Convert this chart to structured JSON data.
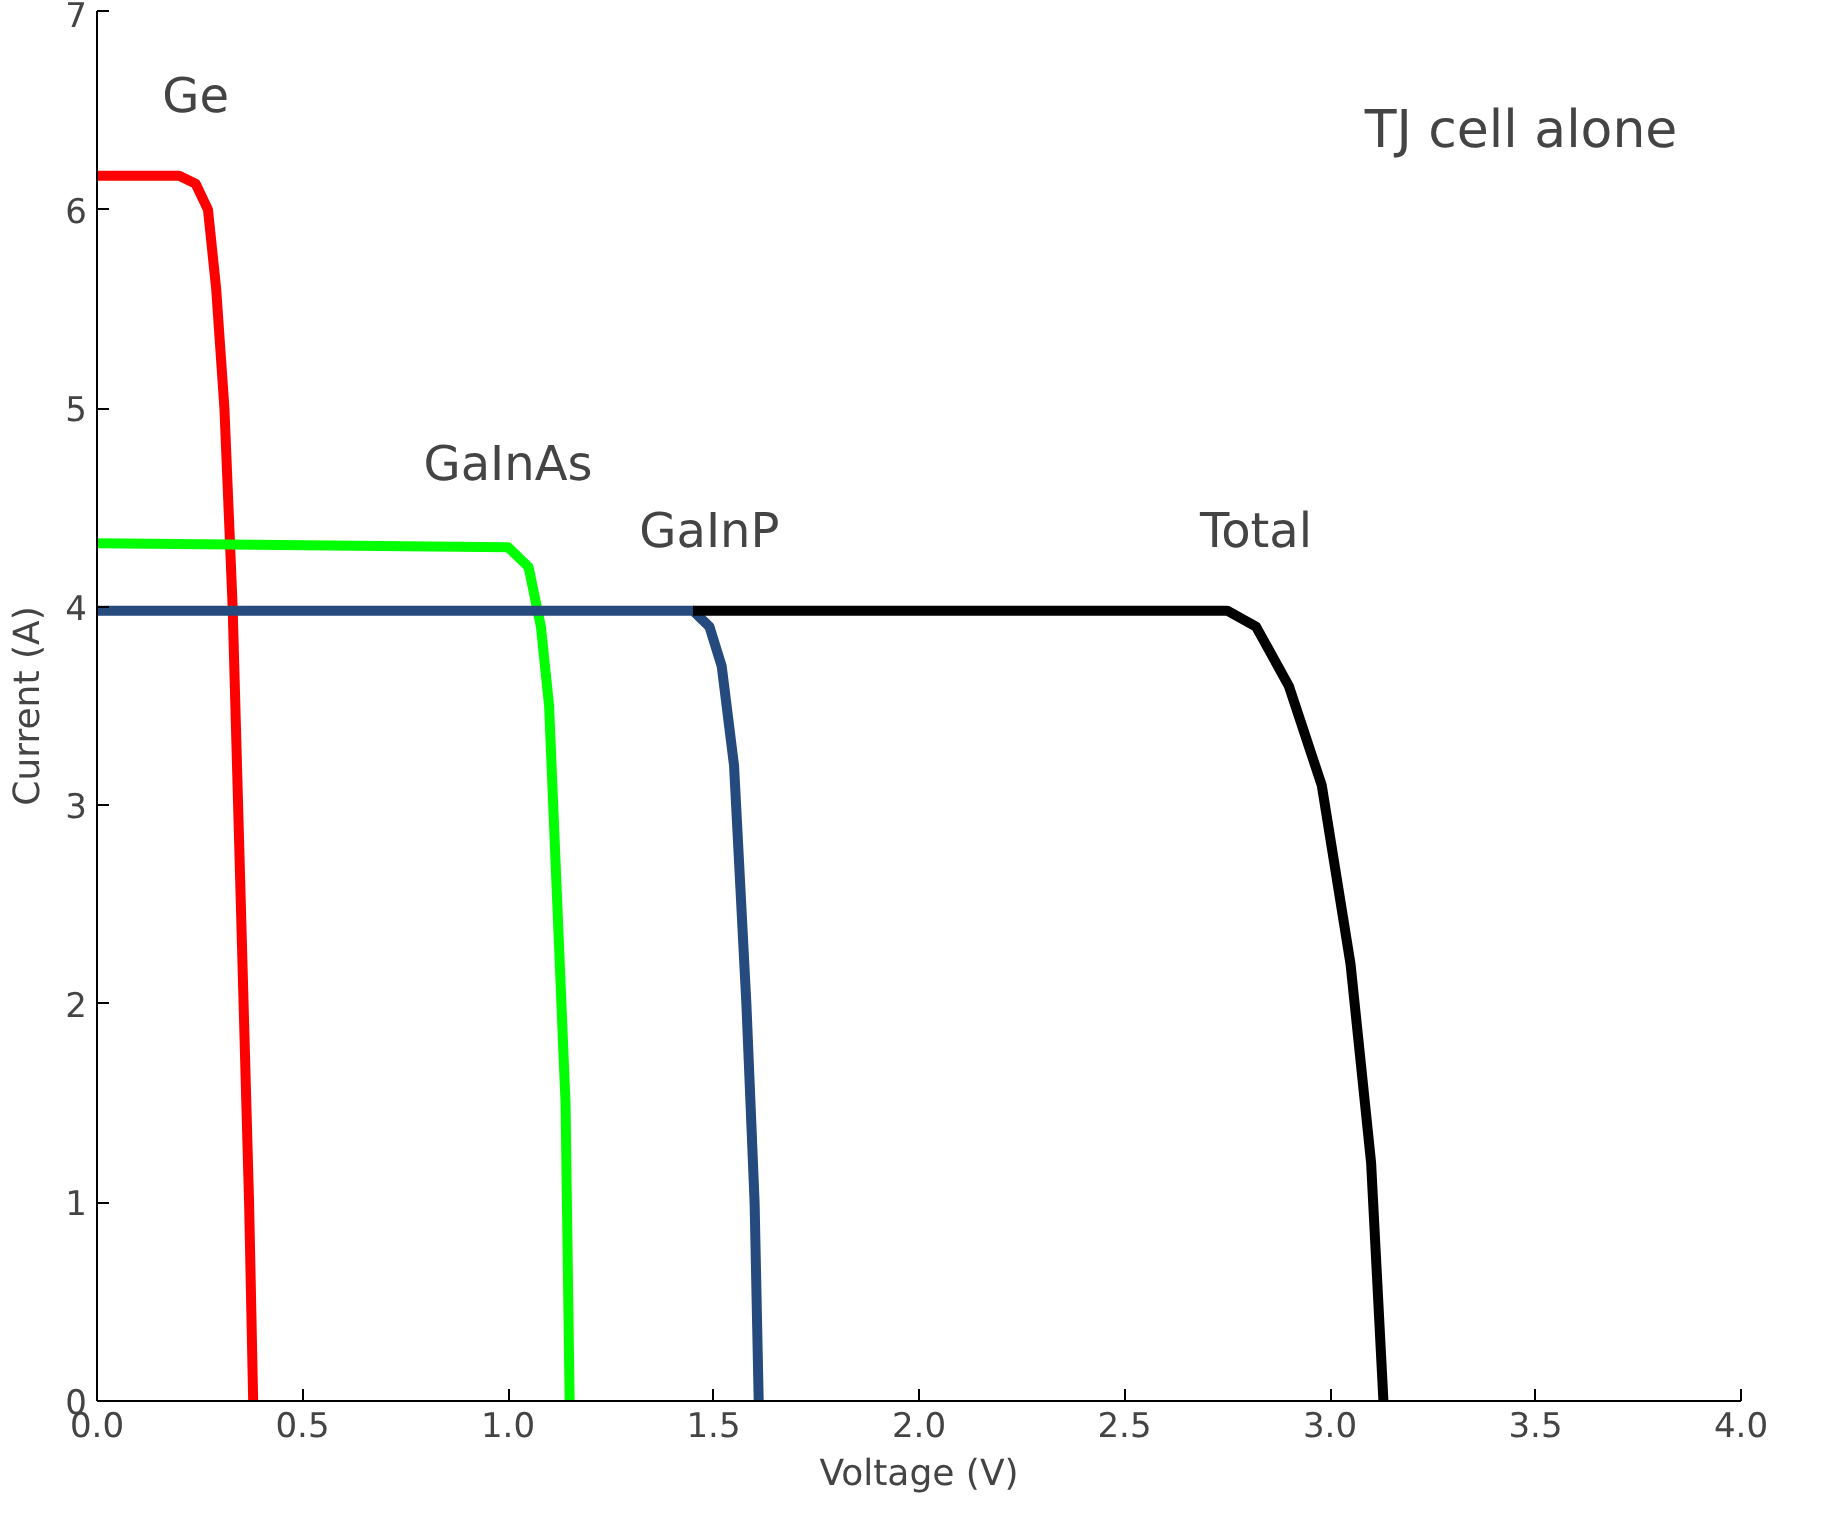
{
  "chart_data": {
    "type": "line",
    "xlabel": "Voltage (V)",
    "ylabel": "Current (A)",
    "annotations": [
      "TJ cell alone"
    ],
    "xlim": [
      0,
      4
    ],
    "ylim": [
      0,
      7
    ],
    "xticks": [
      {
        "value": 0,
        "label": "0.0"
      },
      0.5,
      {
        "value": 1,
        "label": "1.0"
      },
      1.5,
      {
        "value": 2,
        "label": "2.0"
      },
      2.5,
      {
        "value": 3,
        "label": "3.0"
      },
      3.5,
      {
        "value": 4,
        "label": "4.0"
      }
    ],
    "yticks": [
      0,
      1,
      2,
      3,
      4,
      5,
      6,
      7
    ],
    "grid": false,
    "marker": "none",
    "line_style": "solid",
    "series": [
      {
        "name": "Ge",
        "color": "#ff0000",
        "x": [
          0,
          0.2,
          0.24,
          0.27,
          0.29,
          0.31,
          0.33,
          0.35,
          0.37,
          0.38
        ],
        "values": [
          6.17,
          6.17,
          6.13,
          6.0,
          5.6,
          5.0,
          4.0,
          2.5,
          1.0,
          0
        ]
      },
      {
        "name": "GaInAs",
        "color": "#00ff00",
        "x": [
          0,
          1.0,
          1.05,
          1.08,
          1.1,
          1.12,
          1.14,
          1.15
        ],
        "values": [
          4.32,
          4.3,
          4.2,
          3.9,
          3.5,
          2.5,
          1.5,
          0
        ]
      },
      {
        "name": "GaInP",
        "color": "#254a7e",
        "x": [
          0,
          1.45,
          1.49,
          1.52,
          1.55,
          1.58,
          1.6,
          1.61
        ],
        "values": [
          3.98,
          3.98,
          3.9,
          3.7,
          3.2,
          2.0,
          1.0,
          0
        ]
      },
      {
        "name": "Total",
        "color": "#000000",
        "x": [
          1.45,
          2.75,
          2.82,
          2.9,
          2.98,
          3.05,
          3.1,
          3.13
        ],
        "values": [
          3.98,
          3.98,
          3.9,
          3.6,
          3.1,
          2.2,
          1.2,
          0
        ]
      }
    ]
  }
}
